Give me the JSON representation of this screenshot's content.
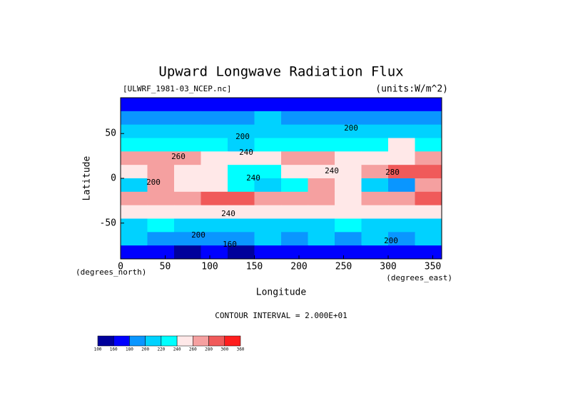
{
  "chart_data": {
    "type": "contour",
    "title": "Upward Longwave Radiation Flux",
    "subtitle": "[ULWRF_1981-03_NCEP.nc]",
    "units": "(units:W/m^2)",
    "xlabel": "Longitude",
    "xunit": "(degrees_east)",
    "ylabel": "Latitude",
    "yunit": "(degrees_north)",
    "footnote": "CONTOUR INTERVAL = 2.000E+01",
    "xlim": [
      0,
      360
    ],
    "ylim": [
      -90,
      90
    ],
    "xticks": [
      0,
      50,
      100,
      150,
      200,
      250,
      300,
      350
    ],
    "yticks": [
      -50,
      0,
      50
    ],
    "x": [
      0,
      30,
      60,
      90,
      120,
      150,
      180,
      210,
      240,
      270,
      300,
      330,
      360
    ],
    "y": [
      90,
      75,
      60,
      45,
      30,
      15,
      0,
      -15,
      -30,
      -45,
      -60,
      -75,
      -90
    ],
    "values": [
      [
        175,
        170,
        165,
        170,
        175,
        170,
        170,
        175,
        170,
        170,
        175,
        170
      ],
      [
        195,
        190,
        185,
        195,
        190,
        200,
        195,
        190,
        195,
        190,
        195,
        195
      ],
      [
        215,
        210,
        205,
        215,
        200,
        210,
        215,
        210,
        205,
        210,
        215,
        210
      ],
      [
        235,
        230,
        225,
        235,
        210,
        225,
        235,
        230,
        235,
        230,
        240,
        235
      ],
      [
        265,
        260,
        265,
        255,
        250,
        245,
        260,
        265,
        255,
        250,
        245,
        265
      ],
      [
        255,
        270,
        250,
        245,
        225,
        235,
        245,
        250,
        255,
        270,
        285,
        290
      ],
      [
        215,
        265,
        245,
        250,
        230,
        215,
        220,
        260,
        255,
        200,
        190,
        275
      ],
      [
        270,
        265,
        275,
        285,
        280,
        265,
        270,
        265,
        250,
        260,
        270,
        285
      ],
      [
        245,
        250,
        245,
        250,
        245,
        240,
        245,
        245,
        240,
        245,
        250,
        245
      ],
      [
        215,
        220,
        215,
        210,
        215,
        215,
        210,
        215,
        220,
        215,
        210,
        215
      ],
      [
        200,
        195,
        195,
        190,
        195,
        200,
        195,
        200,
        195,
        200,
        195,
        200
      ],
      [
        165,
        160,
        155,
        160,
        150,
        160,
        165,
        160,
        165,
        160,
        165,
        160
      ]
    ],
    "levels": [
      100,
      160,
      180,
      200,
      220,
      240,
      260,
      280,
      300,
      360
    ],
    "colors": [
      "#00009b",
      "#0000ff",
      "#0a96ff",
      "#00d2ff",
      "#00ffff",
      "#ffe8e8",
      "#f5a0a0",
      "#f05a5a",
      "#ff1e1e"
    ],
    "contour_labels": [
      200,
      200,
      240,
      260,
      240,
      280,
      240,
      240,
      200,
      200,
      160,
      200
    ]
  }
}
